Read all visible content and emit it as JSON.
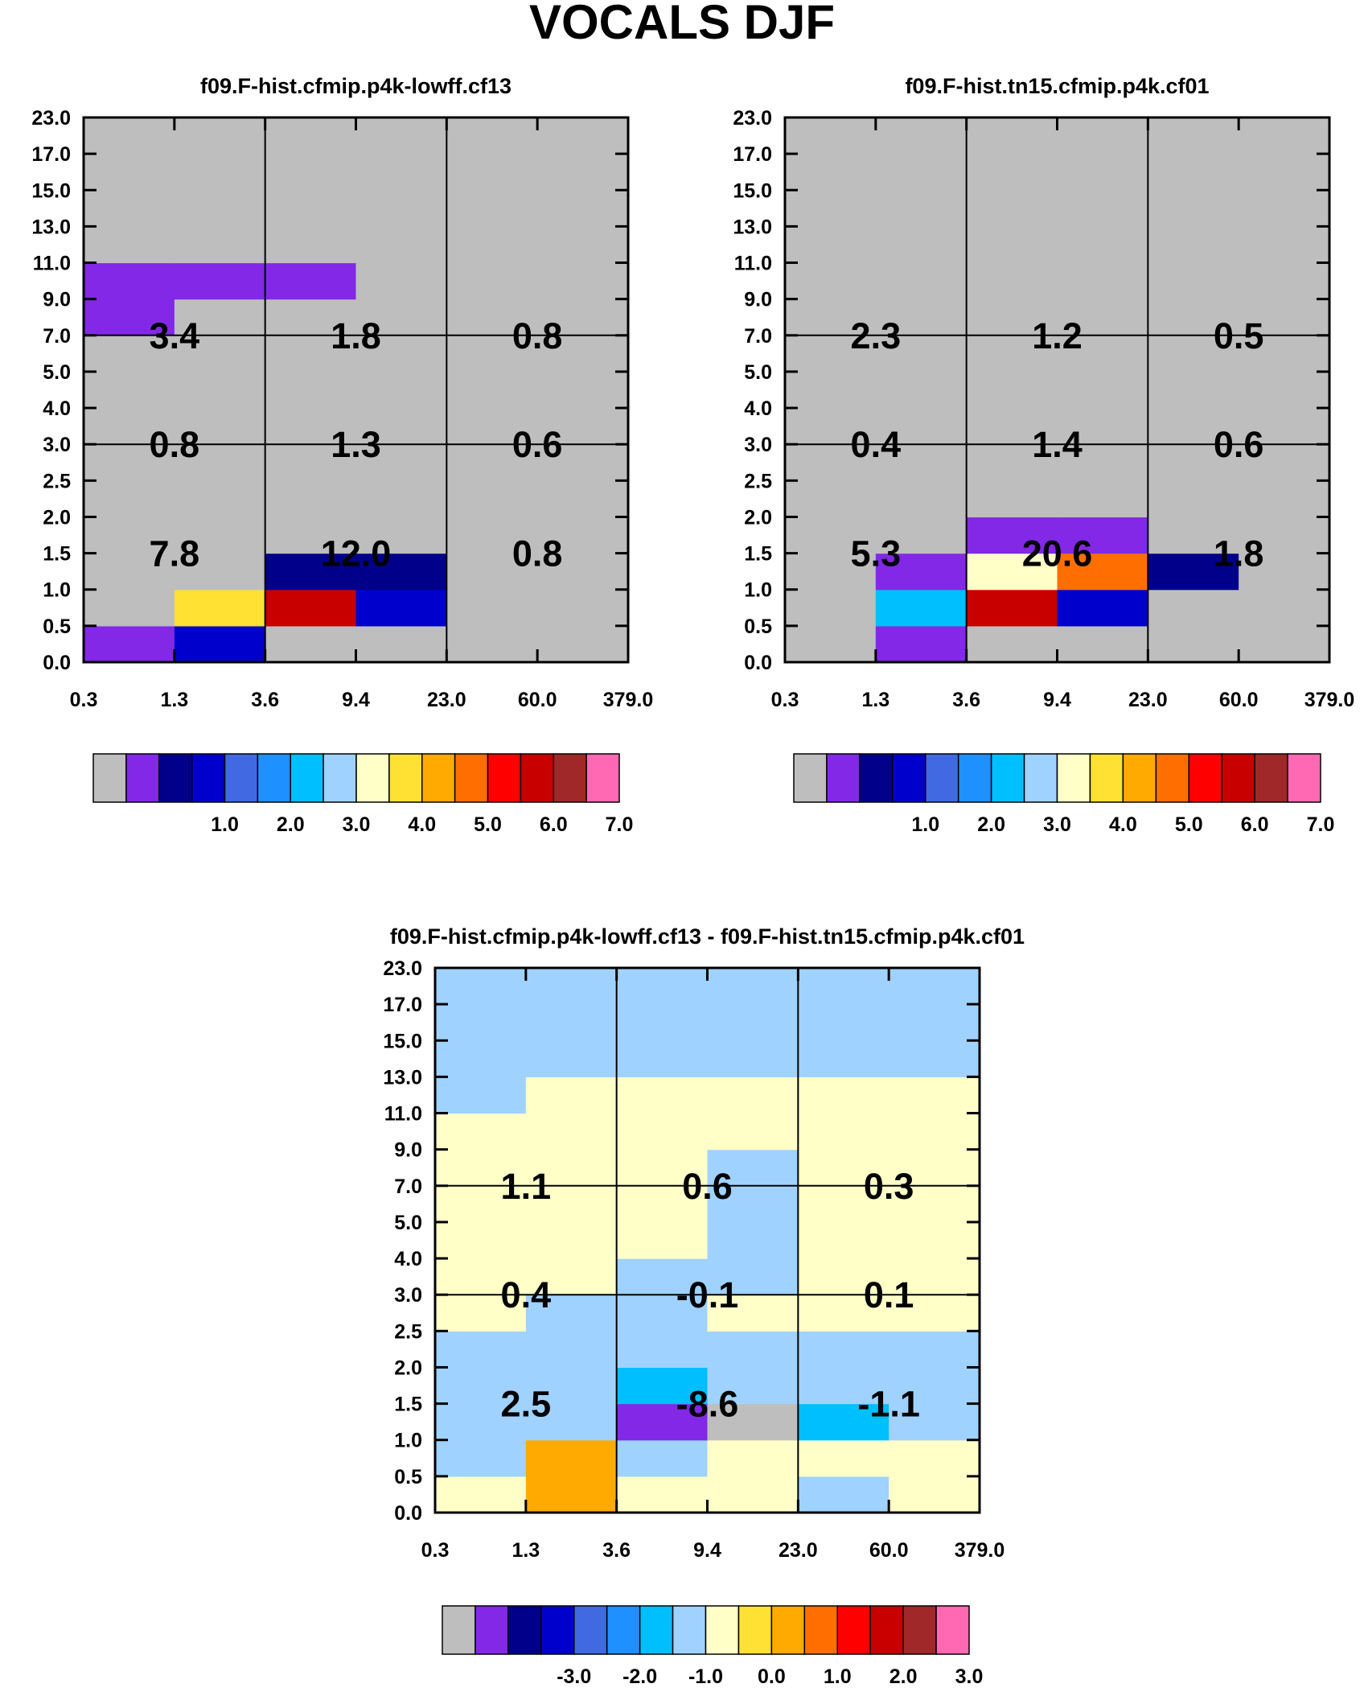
{
  "title": "VOCALS DJF",
  "colors": {
    "palette": [
      "#bebebe",
      "#8228e6",
      "#00008b",
      "#0000cd",
      "#4169e1",
      "#1e90ff",
      "#00bfff",
      "#a0d2ff",
      "#ffffc8",
      "#ffe133",
      "#ffaa00",
      "#ff6e00",
      "#ff0000",
      "#c80000",
      "#a02828",
      "#ff69b4"
    ],
    "grid": "#000000",
    "background": "#ffffff"
  },
  "x_labels": [
    "0.3",
    "1.3",
    "3.6",
    "9.4",
    "23.0",
    "60.0",
    "379.0"
  ],
  "y_labels": [
    "0.0",
    "0.5",
    "1.0",
    "1.5",
    "2.0",
    "2.5",
    "3.0",
    "4.0",
    "5.0",
    "7.0",
    "9.0",
    "11.0",
    "13.0",
    "15.0",
    "17.0",
    "23.0"
  ],
  "chart_data": [
    {
      "type": "heatmap",
      "title": "f09.F-hist.cfmip.p4k-lowff.cf13",
      "x_edges": [
        "0.3",
        "1.3",
        "3.6",
        "9.4",
        "23.0",
        "60.0",
        "379.0"
      ],
      "y_edges": [
        "0.0",
        "0.5",
        "1.0",
        "1.5",
        "2.0",
        "2.5",
        "3.0",
        "4.0",
        "5.0",
        "7.0",
        "9.0",
        "11.0",
        "13.0",
        "15.0",
        "17.0",
        "23.0"
      ],
      "cell_color_index": [
        [
          1,
          3,
          0,
          0,
          0,
          0
        ],
        [
          0,
          9,
          13,
          3,
          0,
          0
        ],
        [
          0,
          0,
          2,
          2,
          0,
          0
        ],
        [
          0,
          0,
          0,
          0,
          0,
          0
        ],
        [
          0,
          0,
          0,
          0,
          0,
          0
        ],
        [
          0,
          0,
          0,
          0,
          0,
          0
        ],
        [
          0,
          0,
          0,
          0,
          0,
          0
        ],
        [
          0,
          0,
          0,
          0,
          0,
          0
        ],
        [
          0,
          0,
          0,
          0,
          0,
          0
        ],
        [
          1,
          0,
          0,
          0,
          0,
          0
        ],
        [
          1,
          1,
          1,
          0,
          0,
          0
        ],
        [
          0,
          0,
          0,
          0,
          0,
          0
        ],
        [
          0,
          0,
          0,
          0,
          0,
          0
        ],
        [
          0,
          0,
          0,
          0,
          0,
          0
        ],
        [
          0,
          0,
          0,
          0,
          0,
          0
        ]
      ],
      "block_values": [
        [
          "7.8",
          "12.0",
          "0.8"
        ],
        [
          "0.8",
          "1.3",
          "0.6"
        ],
        [
          "3.4",
          "1.8",
          "0.8"
        ]
      ],
      "colorbar": {
        "labels": [
          "1.0",
          "2.0",
          "3.0",
          "4.0",
          "5.0",
          "6.0",
          "7.0"
        ],
        "n_boxes": 16
      }
    },
    {
      "type": "heatmap",
      "title": "f09.F-hist.tn15.cfmip.p4k.cf01",
      "x_edges": [
        "0.3",
        "1.3",
        "3.6",
        "9.4",
        "23.0",
        "60.0",
        "379.0"
      ],
      "y_edges": [
        "0.0",
        "0.5",
        "1.0",
        "1.5",
        "2.0",
        "2.5",
        "3.0",
        "4.0",
        "5.0",
        "7.0",
        "9.0",
        "11.0",
        "13.0",
        "15.0",
        "17.0",
        "23.0"
      ],
      "cell_color_index": [
        [
          0,
          1,
          0,
          0,
          0,
          0
        ],
        [
          0,
          6,
          13,
          3,
          0,
          0
        ],
        [
          0,
          1,
          8,
          11,
          2,
          0
        ],
        [
          0,
          0,
          1,
          1,
          0,
          0
        ],
        [
          0,
          0,
          0,
          0,
          0,
          0
        ],
        [
          0,
          0,
          0,
          0,
          0,
          0
        ],
        [
          0,
          0,
          0,
          0,
          0,
          0
        ],
        [
          0,
          0,
          0,
          0,
          0,
          0
        ],
        [
          0,
          0,
          0,
          0,
          0,
          0
        ],
        [
          0,
          0,
          0,
          0,
          0,
          0
        ],
        [
          0,
          0,
          0,
          0,
          0,
          0
        ],
        [
          0,
          0,
          0,
          0,
          0,
          0
        ],
        [
          0,
          0,
          0,
          0,
          0,
          0
        ],
        [
          0,
          0,
          0,
          0,
          0,
          0
        ],
        [
          0,
          0,
          0,
          0,
          0,
          0
        ]
      ],
      "block_values": [
        [
          "5.3",
          "20.6",
          "1.8"
        ],
        [
          "0.4",
          "1.4",
          "0.6"
        ],
        [
          "2.3",
          "1.2",
          "0.5"
        ]
      ],
      "colorbar": {
        "labels": [
          "1.0",
          "2.0",
          "3.0",
          "4.0",
          "5.0",
          "6.0",
          "7.0"
        ],
        "n_boxes": 16
      }
    },
    {
      "type": "heatmap",
      "title": "f09.F-hist.cfmip.p4k-lowff.cf13 - f09.F-hist.tn15.cfmip.p4k.cf01",
      "x_edges": [
        "0.3",
        "1.3",
        "3.6",
        "9.4",
        "23.0",
        "60.0",
        "379.0"
      ],
      "y_edges": [
        "0.0",
        "0.5",
        "1.0",
        "1.5",
        "2.0",
        "2.5",
        "3.0",
        "4.0",
        "5.0",
        "7.0",
        "9.0",
        "11.0",
        "13.0",
        "15.0",
        "17.0",
        "23.0"
      ],
      "cell_color_index": [
        [
          8,
          10,
          8,
          8,
          7,
          8
        ],
        [
          7,
          10,
          7,
          8,
          8,
          8
        ],
        [
          7,
          7,
          1,
          0,
          6,
          7
        ],
        [
          7,
          7,
          6,
          7,
          7,
          7
        ],
        [
          7,
          7,
          7,
          7,
          7,
          7
        ],
        [
          8,
          7,
          7,
          8,
          8,
          8
        ],
        [
          8,
          8,
          7,
          7,
          8,
          8
        ],
        [
          8,
          8,
          8,
          7,
          8,
          8
        ],
        [
          8,
          8,
          8,
          7,
          8,
          8
        ],
        [
          8,
          8,
          8,
          7,
          8,
          8
        ],
        [
          8,
          8,
          8,
          8,
          8,
          8
        ],
        [
          7,
          8,
          8,
          8,
          8,
          8
        ],
        [
          7,
          7,
          7,
          7,
          7,
          7
        ],
        [
          7,
          7,
          7,
          7,
          7,
          7
        ],
        [
          7,
          7,
          7,
          7,
          7,
          7
        ]
      ],
      "block_values": [
        [
          "2.5",
          "-8.6",
          "-1.1"
        ],
        [
          "0.4",
          "-0.1",
          "0.1"
        ],
        [
          "1.1",
          "0.6",
          "0.3"
        ]
      ],
      "colorbar": {
        "labels": [
          "-3.0",
          "-2.0",
          "-1.0",
          "0.0",
          "1.0",
          "2.0",
          "3.0"
        ],
        "n_boxes": 16
      }
    }
  ]
}
